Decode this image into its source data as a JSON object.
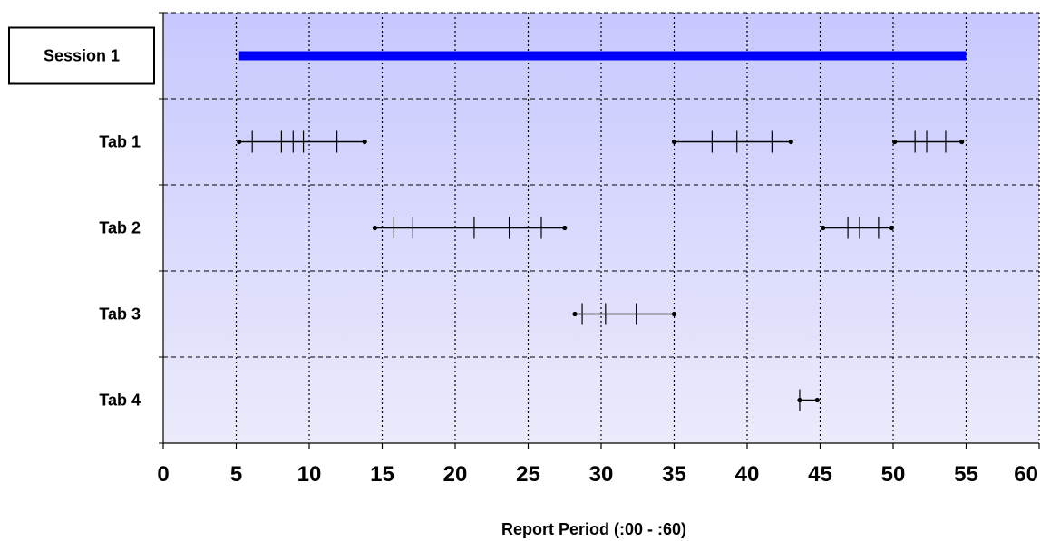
{
  "chart_data": {
    "type": "timeline",
    "xlabel": "Report Period (:00 - :60)",
    "xlim": [
      0,
      60
    ],
    "xticks": [
      0,
      5,
      10,
      15,
      20,
      25,
      30,
      35,
      40,
      45,
      50,
      55,
      60
    ],
    "grid": true,
    "session": {
      "label": "Session 1",
      "start": 5.2,
      "end": 55.0
    },
    "rows": [
      {
        "label": "Tab 1",
        "segments": [
          {
            "start": 5.2,
            "end": 13.8,
            "marks": [
              6.1,
              8.1,
              8.9,
              9.6,
              11.9
            ]
          },
          {
            "start": 35.0,
            "end": 43.0,
            "marks": [
              37.6,
              39.3,
              41.7
            ]
          },
          {
            "start": 50.1,
            "end": 54.7,
            "marks": [
              51.5,
              52.3,
              53.6
            ]
          }
        ]
      },
      {
        "label": "Tab 2",
        "segments": [
          {
            "start": 14.5,
            "end": 27.5,
            "marks": [
              15.8,
              17.1,
              21.3,
              23.7,
              25.9
            ]
          },
          {
            "start": 45.2,
            "end": 49.9,
            "marks": [
              46.9,
              47.7,
              49.0
            ]
          }
        ]
      },
      {
        "label": "Tab 3",
        "segments": [
          {
            "start": 28.2,
            "end": 35.0,
            "marks": [
              28.7,
              30.3,
              32.4
            ]
          }
        ]
      },
      {
        "label": "Tab 4",
        "segments": [
          {
            "start": 43.6,
            "end": 44.8,
            "marks": [
              43.6
            ]
          }
        ]
      }
    ],
    "colors": {
      "session_bar": "#0000ff",
      "plot_bg_top": "#c8c8ff",
      "plot_bg_bottom": "#ebebfc",
      "segment": "#000000"
    }
  }
}
